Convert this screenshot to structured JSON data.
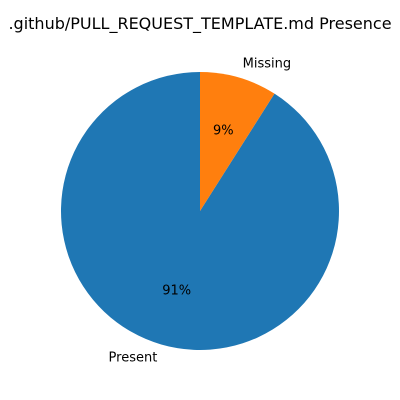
{
  "chart_data": {
    "type": "pie",
    "title": ".github/PULL_REQUEST_TEMPLATE.md Presence",
    "slices": [
      {
        "label": "Present",
        "value": 91,
        "display": "91%",
        "color": "#1f77b4"
      },
      {
        "label": "Missing",
        "value": 9,
        "display": "9%",
        "color": "#ff7f0e"
      }
    ],
    "start_angle_deg": 90,
    "direction": "counterclockwise"
  }
}
